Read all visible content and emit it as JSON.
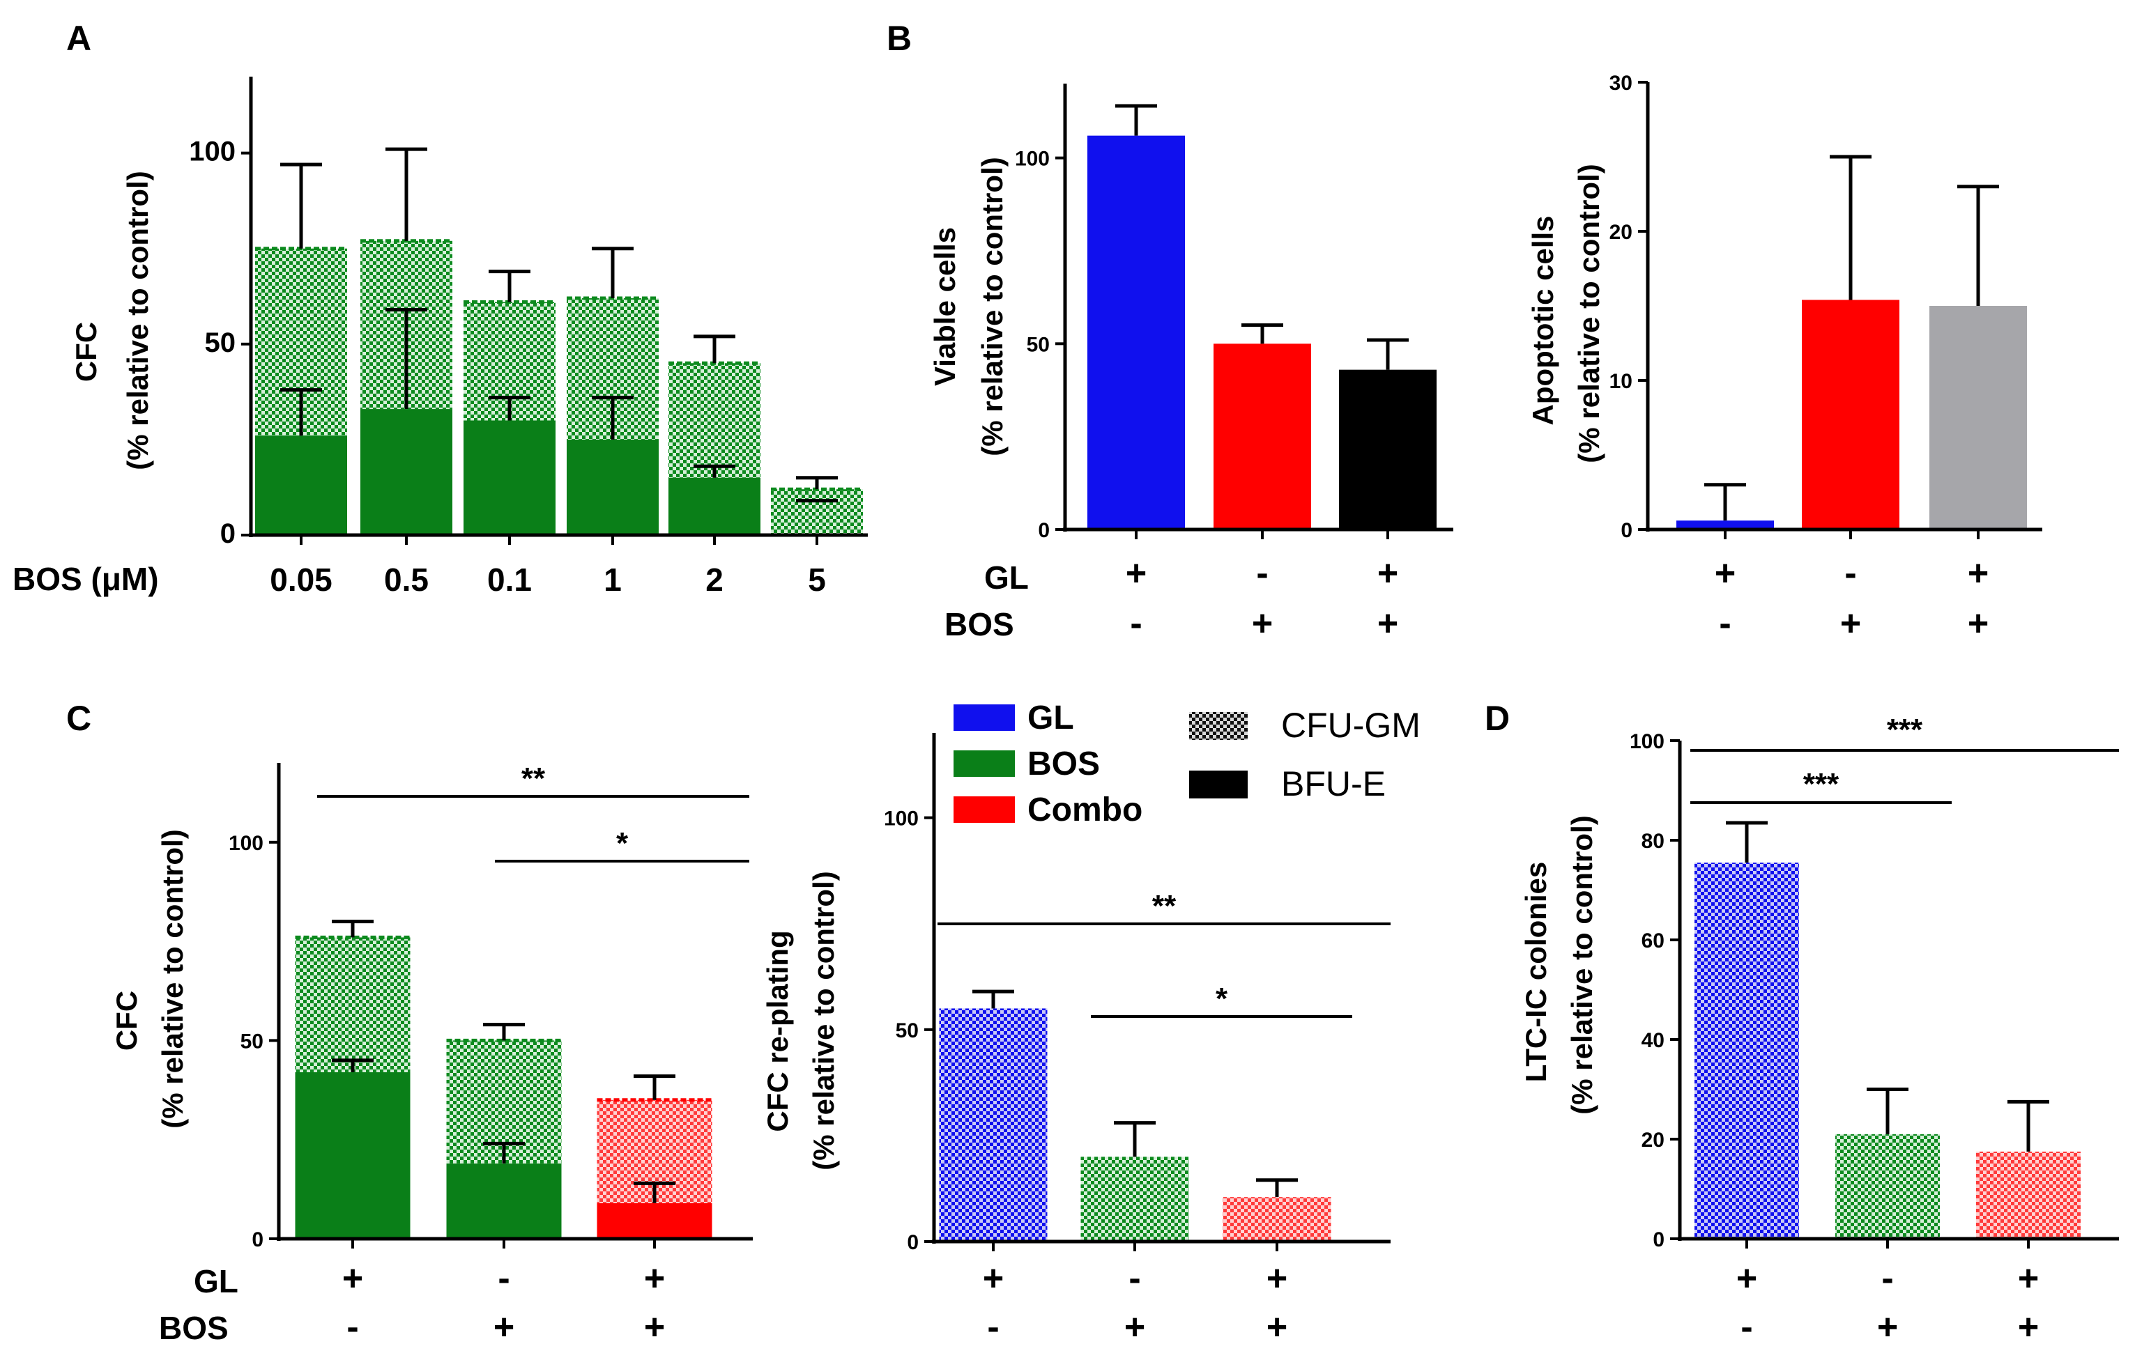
{
  "colors": {
    "gl": "#1010ee",
    "bos": "#0a7f18",
    "combo": "#ff0000",
    "bos_bright": "#0c8a1e",
    "black": "#000000",
    "grey": "#a6a6aa",
    "bos_cfugm_light": "#d6efd9",
    "gl_light": "#c9c9f7",
    "combo_light": "#ffd2d2"
  },
  "legend": {
    "items": [
      {
        "label": "GL",
        "color": "#1010ee"
      },
      {
        "label": "BOS",
        "color": "#0a7f18"
      },
      {
        "label": "Combo",
        "color": "#ff0000"
      }
    ],
    "types": [
      {
        "label": "CFU-GM",
        "pattern": "checker"
      },
      {
        "label": "BFU-E",
        "pattern": "solid"
      }
    ]
  },
  "chart_data": [
    {
      "id": "A",
      "panel_label": "A",
      "type": "bar",
      "stacked": true,
      "ylabel_line1": "CFC",
      "ylabel_line2": "(% relative to control)",
      "xrow_label": "BOS (μM)",
      "ylim": [
        0,
        120
      ],
      "yticks": [
        0,
        50,
        100
      ],
      "categories": [
        "0.05",
        "0.5",
        "0.1",
        "1",
        "2",
        "5"
      ],
      "series": [
        {
          "name": "BFU-E",
          "values": [
            26,
            33,
            30,
            25,
            15,
            0
          ],
          "errors": [
            12,
            26,
            6,
            11,
            3,
            0
          ]
        },
        {
          "name": "CFU-GM",
          "values": [
            49,
            44,
            31,
            37,
            30,
            12
          ],
          "errors": [
            22,
            24,
            8,
            13,
            7,
            3
          ]
        }
      ]
    },
    {
      "id": "B1",
      "panel_label": "B",
      "type": "bar",
      "ylabel_line1": "Viable cells",
      "ylabel_line2": "(% relative to control)",
      "ylim": [
        0,
        120
      ],
      "yticks": [
        0,
        50,
        100
      ],
      "categories": [
        "GL",
        "BOS",
        "Combo"
      ],
      "values": [
        106,
        50,
        43
      ],
      "errors": [
        8,
        5,
        8
      ],
      "rows": [
        {
          "label": "GL",
          "signs": [
            "+",
            "-",
            "+"
          ]
        },
        {
          "label": "BOS",
          "signs": [
            "-",
            "+",
            "+"
          ]
        }
      ]
    },
    {
      "id": "B2",
      "type": "bar",
      "ylabel_line1": "Apoptotic cells",
      "ylabel_line2": "(% relative to control)",
      "ylim": [
        0,
        30
      ],
      "yticks": [
        0,
        10,
        20,
        30
      ],
      "categories": [
        "GL",
        "BOS",
        "Combo"
      ],
      "values": [
        0.6,
        15.4,
        15.0
      ],
      "errors": [
        2.4,
        9.6,
        8.0
      ],
      "rows": [
        {
          "label": "",
          "signs": [
            "+",
            "-",
            "+"
          ]
        },
        {
          "label": "",
          "signs": [
            "-",
            "+",
            "+"
          ]
        }
      ]
    },
    {
      "id": "C1",
      "panel_label": "C",
      "type": "bar",
      "stacked": true,
      "ylabel_line1": "CFC",
      "ylabel_line2": "(% relative to control)",
      "ylim": [
        0,
        120
      ],
      "yticks": [
        0,
        50,
        100
      ],
      "categories": [
        "GL",
        "BOS",
        "Combo"
      ],
      "series": [
        {
          "name": "BFU-E",
          "values": [
            42,
            19,
            9
          ],
          "errors": [
            3,
            5,
            5
          ]
        },
        {
          "name": "CFU-GM",
          "values": [
            34,
            31,
            26
          ],
          "errors": [
            4,
            4,
            6
          ]
        }
      ],
      "significance": [
        {
          "label": "**",
          "from": 0,
          "to": 2
        },
        {
          "label": "*",
          "from": 1,
          "to": 2
        }
      ],
      "rows": [
        {
          "label": "GL",
          "signs": [
            "+",
            "-",
            "+"
          ]
        },
        {
          "label": "BOS",
          "signs": [
            "-",
            "+",
            "+"
          ]
        }
      ]
    },
    {
      "id": "C2",
      "type": "bar",
      "ylabel_line1": "CFC re-plating",
      "ylabel_line2": "(% relative to control)",
      "ylim": [
        0,
        120
      ],
      "yticks": [
        0,
        50,
        100
      ],
      "categories": [
        "GL",
        "BOS",
        "Combo"
      ],
      "values": [
        55,
        20,
        10.5
      ],
      "errors": [
        4,
        8,
        4
      ],
      "significance": [
        {
          "label": "**",
          "from": 0,
          "to": 2
        },
        {
          "label": "*",
          "from": 1,
          "to": 2
        }
      ],
      "rows": [
        {
          "label": "",
          "signs": [
            "+",
            "-",
            "+"
          ]
        },
        {
          "label": "",
          "signs": [
            "-",
            "+",
            "+"
          ]
        }
      ]
    },
    {
      "id": "D",
      "panel_label": "D",
      "type": "bar",
      "ylabel_line1": "LTC-IC colonies",
      "ylabel_line2": "(% relative to control)",
      "ylim": [
        0,
        100
      ],
      "yticks": [
        0,
        20,
        40,
        60,
        80,
        100
      ],
      "categories": [
        "GL",
        "BOS",
        "Combo"
      ],
      "values": [
        75.5,
        21,
        17.5
      ],
      "errors": [
        8,
        9,
        10
      ],
      "significance": [
        {
          "label": "***",
          "from": 0,
          "to": 1
        },
        {
          "label": "***",
          "from": 0,
          "to": 2
        }
      ],
      "rows": [
        {
          "label": "",
          "signs": [
            "+",
            "-",
            "+"
          ]
        },
        {
          "label": "",
          "signs": [
            "-",
            "+",
            "+"
          ]
        }
      ]
    }
  ]
}
